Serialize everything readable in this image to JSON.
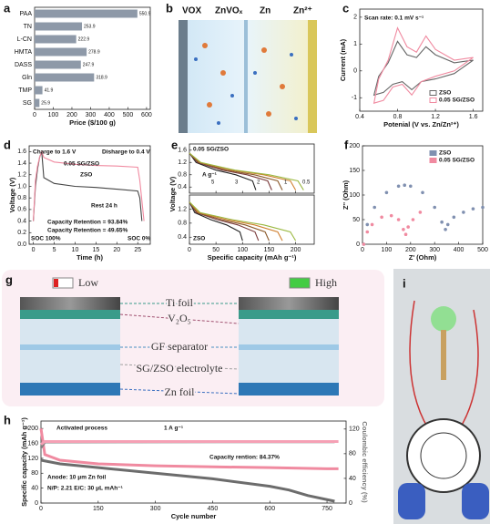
{
  "panel_labels": [
    "a",
    "b",
    "c",
    "d",
    "e",
    "f",
    "g",
    "h",
    "i"
  ],
  "schematic_b": {
    "labels": [
      "VOX",
      "ZnVOₓ",
      "Zn",
      "Zn²⁺"
    ]
  },
  "schematic_g": {
    "low": "Low",
    "high": "High",
    "layers": [
      "Ti foil",
      "V₂O₅",
      "GF separator",
      "SG/ZSO electrolyte",
      "Zn foil"
    ]
  },
  "chart_data": [
    {
      "type": "bar",
      "orientation": "horizontal",
      "categories": [
        "PAA",
        "TN",
        "L-CN",
        "HMTA",
        "DASS",
        "Gln",
        "TMP",
        "SG"
      ],
      "values": [
        550.9,
        253.9,
        222.9,
        278.9,
        247.9,
        318.9,
        41.9,
        25.9
      ],
      "color": "#8e99a8",
      "xlim": [
        0,
        620
      ],
      "xticks": [
        0,
        100,
        200,
        300,
        400,
        500,
        600
      ],
      "xlabel": "Price ($/100 g)"
    },
    {
      "type": "line",
      "xlim": [
        0.4,
        1.7
      ],
      "ylim": [
        -1.5,
        2.3
      ],
      "xticks": [
        0.4,
        0.8,
        1.2,
        1.6
      ],
      "yticks": [
        -1,
        0,
        1,
        2
      ],
      "xlabel": "Potenial (V vs. Zn/Zn²⁺)",
      "ylabel": "Current (mA)",
      "annotations": [
        "Scan rate: 0.1 mV s⁻¹"
      ],
      "legend": "lower right",
      "series": [
        {
          "name": "ZSO",
          "color": "#666666",
          "x": [
            1.6,
            1.4,
            1.2,
            1.05,
            0.95,
            0.85,
            0.75,
            0.65,
            0.55,
            0.6,
            0.7,
            0.8,
            0.9,
            1.0,
            1.1,
            1.2,
            1.4,
            1.6
          ],
          "values": [
            0.4,
            -0.1,
            -0.3,
            -0.4,
            -0.7,
            -0.4,
            -0.5,
            -0.8,
            -0.9,
            -0.2,
            0.3,
            1.1,
            0.6,
            0.5,
            0.9,
            0.6,
            0.3,
            0.4
          ]
        },
        {
          "name": "0.05 SG/ZSO",
          "color": "#f08aa0",
          "x": [
            1.6,
            1.4,
            1.2,
            1.05,
            0.95,
            0.85,
            0.75,
            0.65,
            0.55,
            0.6,
            0.7,
            0.8,
            0.9,
            1.0,
            1.1,
            1.2,
            1.4,
            1.6
          ],
          "values": [
            0.5,
            0.0,
            -0.2,
            -0.4,
            -0.9,
            -0.5,
            -0.6,
            -1.1,
            -1.2,
            -0.3,
            0.4,
            1.6,
            0.9,
            0.7,
            1.3,
            0.8,
            0.4,
            0.5
          ]
        }
      ]
    },
    {
      "type": "line",
      "xlim": [
        -1,
        28
      ],
      "ylim": [
        0,
        1.7
      ],
      "xticks": [
        0,
        5,
        10,
        15,
        20,
        25
      ],
      "yticks": [
        {
          "value": 0,
          "label": "0.0"
        },
        0.2,
        0.4,
        0.6,
        0.8,
        {
          "value": 1,
          "label": "1.0"
        },
        1.2,
        1.4,
        1.6
      ],
      "xlabel": "Time (h)",
      "ylabel": "Voltage (V)",
      "annotations": [
        "Charge to 1.6 V",
        "Disharge to 0.4 V",
        "0.05 SG/ZSO",
        "ZSO",
        "Rest 24 h",
        "Capacity Retention = 93.84%",
        "Capacity Retention = 49.65%",
        "SOC 100%",
        "SOC 0%"
      ],
      "series": [
        {
          "color": "#444444",
          "x": [
            0,
            0.5,
            1,
            1.5,
            2,
            2.5,
            5,
            10,
            15,
            20,
            25,
            25.5,
            26
          ],
          "values": [
            0.4,
            1.0,
            1.3,
            1.5,
            1.6,
            1.15,
            1.05,
            1.0,
            0.98,
            0.95,
            0.92,
            0.8,
            0.4
          ]
        },
        {
          "color": "#f08aa0",
          "x": [
            0,
            0.5,
            1,
            1.5,
            2,
            2.5,
            5,
            10,
            15,
            20,
            25,
            25.5,
            26.5
          ],
          "values": [
            0.4,
            1.1,
            1.35,
            1.5,
            1.6,
            1.5,
            1.42,
            1.38,
            1.36,
            1.35,
            1.33,
            1.1,
            0.4
          ]
        }
      ]
    },
    {
      "type": "line",
      "xlim": [
        0,
        235
      ],
      "ylim": [
        0.2,
        1.8
      ],
      "xticks": [
        0,
        50,
        100,
        150,
        200
      ],
      "yticks": [
        0.4,
        0.8,
        1.2,
        1.6
      ],
      "ylabel": "Voltage (V)",
      "annotations": [
        "0.05 SG/ZSO",
        "A g⁻¹"
      ],
      "series": [
        {
          "name": "5",
          "color": "#222222",
          "x": [
            0,
            12.5,
            50,
            87.5,
            118.8,
            125
          ],
          "values": [
            1.5,
            1.2,
            0.95,
            0.8,
            0.6,
            0.3
          ]
        },
        {
          "name": "3",
          "color": "#7a3b3b",
          "x": [
            0,
            15.5,
            62,
            108.5,
            147.3,
            155
          ],
          "values": [
            1.5,
            1.2,
            0.95,
            0.8,
            0.6,
            0.3
          ]
        },
        {
          "name": "2",
          "color": "#8b5a2b",
          "x": [
            0,
            17.5,
            70,
            122.5,
            166.3,
            175
          ],
          "values": [
            1.5,
            1.2,
            0.95,
            0.8,
            0.6,
            0.3
          ]
        },
        {
          "name": "1",
          "color": "#d08030",
          "x": [
            0,
            20,
            80,
            140,
            190,
            200
          ],
          "values": [
            1.5,
            1.2,
            0.95,
            0.8,
            0.6,
            0.3
          ]
        },
        {
          "name": "0.5",
          "color": "#9ab840",
          "x": [
            0,
            21.5,
            86,
            150.5,
            204.3,
            215
          ],
          "values": [
            1.5,
            1.2,
            0.95,
            0.8,
            0.6,
            0.3
          ]
        }
      ]
    },
    {
      "type": "line",
      "xlim": [
        0,
        235
      ],
      "ylim": [
        0.2,
        1.6
      ],
      "xticks": [
        0,
        50,
        100,
        150,
        200
      ],
      "yticks": [
        0.4,
        0.8,
        1.2
      ],
      "xlabel": "Specific capacity (mAh g⁻¹)",
      "annotations": [
        "ZSO"
      ],
      "series": [
        {
          "color": "#222222",
          "x": [
            0,
            10,
            40,
            70,
            95,
            100
          ],
          "values": [
            1.4,
            1.1,
            0.9,
            0.75,
            0.55,
            0.3
          ]
        },
        {
          "color": "#7a3b3b",
          "x": [
            0,
            13,
            52,
            91,
            123.5,
            130
          ],
          "values": [
            1.4,
            1.1,
            0.9,
            0.75,
            0.55,
            0.3
          ]
        },
        {
          "color": "#8b5a2b",
          "x": [
            0,
            15,
            60,
            105,
            142.5,
            150
          ],
          "values": [
            1.4,
            1.1,
            0.9,
            0.75,
            0.55,
            0.3
          ]
        },
        {
          "color": "#d08030",
          "x": [
            0,
            17.5,
            70,
            122.5,
            166.3,
            175
          ],
          "values": [
            1.4,
            1.1,
            0.9,
            0.75,
            0.55,
            0.3
          ]
        },
        {
          "color": "#9ab840",
          "x": [
            0,
            20,
            80,
            140,
            190,
            200
          ],
          "values": [
            1.4,
            1.1,
            0.9,
            0.75,
            0.55,
            0.3
          ]
        }
      ]
    },
    {
      "type": "scatter",
      "xlim": [
        0,
        500
      ],
      "ylim": [
        0,
        200
      ],
      "xticks": [
        0,
        100,
        200,
        300,
        400,
        500
      ],
      "yticks": [
        0,
        50,
        100,
        150,
        200
      ],
      "xlabel": "Z' (Ohm)",
      "ylabel": "Z'' (Ohm)",
      "legend": "upper right",
      "series": [
        {
          "name": "ZSO",
          "color": "#8090b0",
          "x": [
            5,
            20,
            50,
            100,
            150,
            175,
            200,
            250,
            300,
            330,
            345,
            355,
            380,
            420,
            460,
            500
          ],
          "values": [
            0,
            40,
            75,
            105,
            118,
            120,
            118,
            105,
            75,
            45,
            30,
            40,
            55,
            65,
            72,
            75
          ]
        },
        {
          "name": "0.05 SG/ZSO",
          "color": "#f08aa0",
          "x": [
            5,
            20,
            40,
            80,
            120,
            150,
            170,
            180,
            190,
            210,
            240
          ],
          "values": [
            0,
            25,
            40,
            55,
            58,
            50,
            30,
            20,
            35,
            50,
            65
          ]
        }
      ]
    },
    {
      "type": "line",
      "xlim": [
        0,
        800
      ],
      "ylim": [
        0,
        220
      ],
      "y2lim": [
        0,
        133
      ],
      "xticks": [
        0,
        150,
        300,
        450,
        600,
        750
      ],
      "yticks": [
        0,
        40,
        80,
        120,
        160,
        200
      ],
      "y2ticks": [
        0,
        40,
        80,
        120
      ],
      "xlabel": "Cycle number",
      "ylabel": "Specific capacity (mAh g⁻¹)",
      "y2label": "Coulombic efficiency (%)",
      "annotations": [
        "Activated process",
        "1 A g⁻¹",
        "Capacity rention: 84.37%",
        "Anode: 10 μm Zn foil",
        "N/P: 2.21  E/C: 30 μL mAh⁻¹"
      ],
      "series": [
        {
          "color": "#6c6c6c",
          "x": [
            0,
            50,
            150,
            300,
            450,
            600,
            650,
            700,
            770
          ],
          "values": [
            115,
            105,
            95,
            80,
            65,
            45,
            35,
            20,
            5
          ]
        },
        {
          "color": "#f08aa0",
          "x": [
            0,
            10,
            50,
            150,
            300,
            450,
            600,
            750,
            780
          ],
          "values": [
            200,
            130,
            115,
            105,
            100,
            97,
            95,
            92,
            92
          ]
        },
        {
          "color": "#808080",
          "axis": "y2",
          "x": [
            0,
            10,
            770
          ],
          "values": [
            90,
            99,
            99.5
          ]
        },
        {
          "color": "#f5a0b4",
          "axis": "y2",
          "x": [
            0,
            10,
            780
          ],
          "values": [
            95,
            99.8,
            99.8
          ]
        }
      ]
    }
  ]
}
